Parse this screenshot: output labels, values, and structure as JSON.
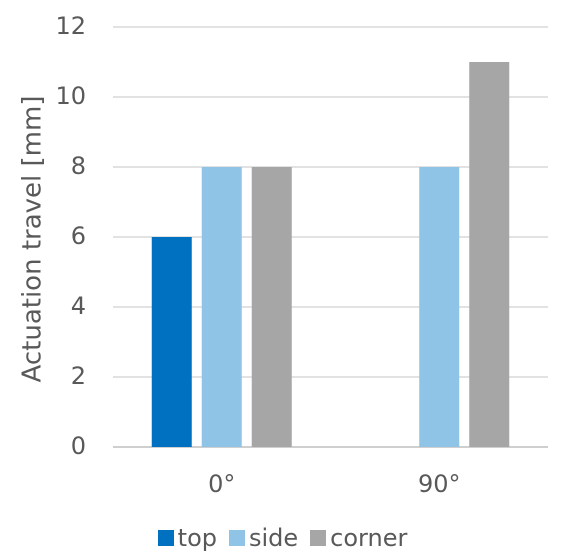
{
  "chart_data": {
    "type": "bar",
    "categories": [
      "0°",
      "90°"
    ],
    "series": [
      {
        "name": "top",
        "color": "#0070c0",
        "values": [
          6,
          null
        ]
      },
      {
        "name": "side",
        "color": "#8fc4e6",
        "values": [
          8,
          8
        ]
      },
      {
        "name": "corner",
        "color": "#a6a6a6",
        "values": [
          8,
          11
        ]
      }
    ],
    "title": "",
    "xlabel": "",
    "ylabel": "Actuation travel [mm]",
    "ylim": [
      0,
      12
    ],
    "yticks": [
      0,
      2,
      4,
      6,
      8,
      10,
      12
    ],
    "grid": true,
    "legend_position": "bottom"
  }
}
